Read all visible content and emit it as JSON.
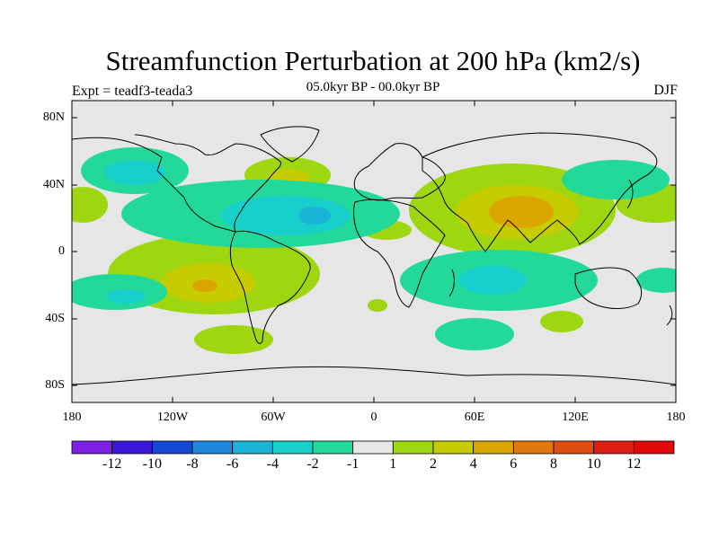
{
  "title": "Streamfunction Perturbation at 200 hPa (km2/s)",
  "subtitle": "05.0kyr BP - 00.0kyr BP",
  "left_label": "Expt = teadf3-teada3",
  "right_label": "DJF",
  "lat_labels": [
    "80N",
    "40N",
    "0",
    "40S",
    "80S"
  ],
  "lon_labels": [
    "180",
    "120W",
    "60W",
    "0",
    "60E",
    "120E",
    "180"
  ],
  "colorbar": {
    "labels": [
      "-12",
      "-10",
      "-8",
      "-6",
      "-4",
      "-2",
      "-1",
      "1",
      "2",
      "4",
      "6",
      "8",
      "10",
      "12"
    ],
    "colors": [
      "#7e1fe4",
      "#3a16d8",
      "#1648d6",
      "#1f86db",
      "#19b4d6",
      "#17cfcb",
      "#22d99a",
      "#e6e6e6",
      "#9ed60f",
      "#c7cc00",
      "#dba600",
      "#e1780f",
      "#de4e10",
      "#dc1f12",
      "#e00808"
    ]
  },
  "colors": {
    "background": "#e6e6e6",
    "coastline": "#000000"
  }
}
